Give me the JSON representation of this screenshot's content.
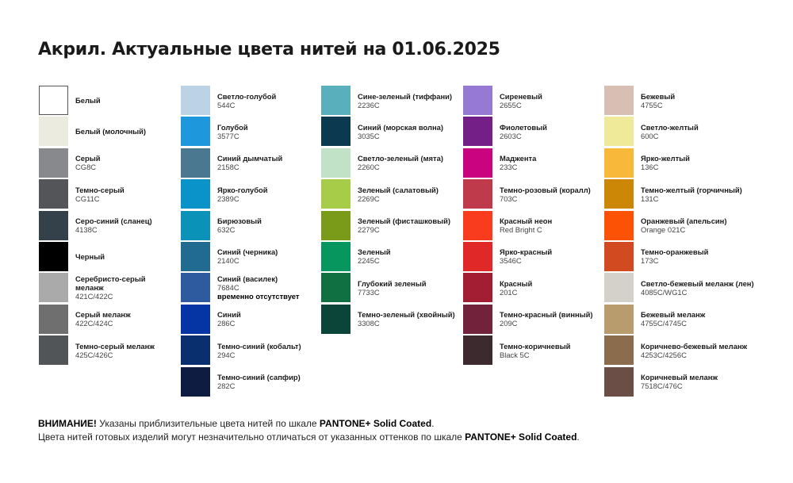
{
  "title": "Акрил. Актуальные цвета нитей на 01.06.2025",
  "columns": [
    [
      {
        "name": "Белый",
        "code": "",
        "color": "#ffffff"
      },
      {
        "name": "Белый (молочный)",
        "code": "",
        "color": "#ebebdf"
      },
      {
        "name": "Серый",
        "code": "CG8C",
        "color": "#88898c"
      },
      {
        "name": "Темно-серый",
        "code": "CG11C",
        "color": "#545558"
      },
      {
        "name": "Серо-синий (сланец)",
        "code": "4138C",
        "color": "#35414a"
      },
      {
        "name": "Черный",
        "code": "",
        "color": "#000000"
      },
      {
        "name": "Серебристо-серый меланж",
        "code": "421C/422C",
        "color": "#a9aaa9"
      },
      {
        "name": "Серый меланж",
        "code": "422C/424C",
        "color": "#6e6f6e"
      },
      {
        "name": "Темно-серый меланж",
        "code": "425C/426C",
        "color": "#515557"
      }
    ],
    [
      {
        "name": "Светло-голубой",
        "code": "544C",
        "color": "#bcd3e6"
      },
      {
        "name": "Голубой",
        "code": "3577C",
        "color": "#1f97dc"
      },
      {
        "name": "Синий дымчатый",
        "code": "2158C",
        "color": "#4b7891"
      },
      {
        "name": "Ярко-голубой",
        "code": "2389C",
        "color": "#0a93c9"
      },
      {
        "name": "Бирюзовый",
        "code": "632C",
        "color": "#0a92b9"
      },
      {
        "name": "Синий (черника)",
        "code": "2140C",
        "color": "#216b90"
      },
      {
        "name": "Синий (василек)",
        "code": "7684C",
        "note": "временно отсутствует",
        "color": "#2e5aa0"
      },
      {
        "name": "Синий",
        "code": "286C",
        "color": "#0535a5"
      },
      {
        "name": "Темно-синий (кобальт)",
        "code": "294C",
        "color": "#0a2f6e"
      },
      {
        "name": "Темно-синий (сапфир)",
        "code": "282C",
        "color": "#0e1c42"
      }
    ],
    [
      {
        "name": "Сине-зеленый (тиффани)",
        "code": "2236C",
        "color": "#5aafbc"
      },
      {
        "name": "Синий (морская волна)",
        "code": "3035C",
        "color": "#0b3a50"
      },
      {
        "name": "Светло-зеленый (мята)",
        "code": "2260C",
        "color": "#c2e2c7"
      },
      {
        "name": "Зеленый (салатовый)",
        "code": "2269C",
        "color": "#a7cc48"
      },
      {
        "name": "Зеленый (фисташковый)",
        "code": "2279C",
        "color": "#7a9a19"
      },
      {
        "name": "Зеленый",
        "code": "2245C",
        "color": "#07965e"
      },
      {
        "name": "Глубокий зеленый",
        "code": "7733C",
        "color": "#117042"
      },
      {
        "name": "Темно-зеленый (хвойный)",
        "code": "3308C",
        "color": "#0b4439"
      }
    ],
    [
      {
        "name": "Сиреневый",
        "code": "2655C",
        "color": "#9579d3"
      },
      {
        "name": "Фиолетовый",
        "code": "2603C",
        "color": "#731f87"
      },
      {
        "name": "Маджента",
        "code": "233C",
        "color": "#c8047f"
      },
      {
        "name": "Темно-розовый (коралл)",
        "code": "703C",
        "color": "#bf3a4b"
      },
      {
        "name": "Красный неон",
        "code": "Red Bright C",
        "color": "#f93c1d"
      },
      {
        "name": "Ярко-красный",
        "code": "3546C",
        "color": "#df2827"
      },
      {
        "name": "Красный",
        "code": "201C",
        "color": "#a41e33"
      },
      {
        "name": "Темно-красный (винный)",
        "code": "209C",
        "color": "#72223a"
      },
      {
        "name": "Темно-коричневый",
        "code": "Black 5C",
        "color": "#3d2a2e"
      }
    ],
    [
      {
        "name": "Бежевый",
        "code": "4755C",
        "color": "#d7c0b3"
      },
      {
        "name": "Светло-желтый",
        "code": "600C",
        "color": "#eeea9a"
      },
      {
        "name": "Ярко-желтый",
        "code": "136C",
        "color": "#f8b93b"
      },
      {
        "name": "Темно-желтый (горчичный)",
        "code": "131C",
        "color": "#cc8707"
      },
      {
        "name": "Оранжевый (апельсин)",
        "code": "Orange 021C",
        "color": "#fb5205"
      },
      {
        "name": "Темно-оранжевый",
        "code": "173C",
        "color": "#d24a20"
      },
      {
        "name": "Светло-бежевый меланж (лен)",
        "code": "4085C/WG1C",
        "color": "#d4d0ca"
      },
      {
        "name": "Бежевый меланж",
        "code": "4755C/4745C",
        "color": "#b99c6e"
      },
      {
        "name": "Коричнево-бежевый меланж",
        "code": "4253C/4256C",
        "color": "#8b6d4e"
      },
      {
        "name": "Коричневый меланж",
        "code": "7518C/476C",
        "color": "#6b4f46"
      }
    ]
  ],
  "footer": {
    "warning_label": "ВНИМАНИЕ!",
    "line1_text": " Указаны приблизительные цвета нитей по шкале ",
    "scale_name": "PANTONE+ Solid Coated",
    "line1_end": ".",
    "line2_text": "Цвета нитей готовых изделий могут незначительно отличаться от указанных оттенков по шкале ",
    "line2_end": "."
  }
}
